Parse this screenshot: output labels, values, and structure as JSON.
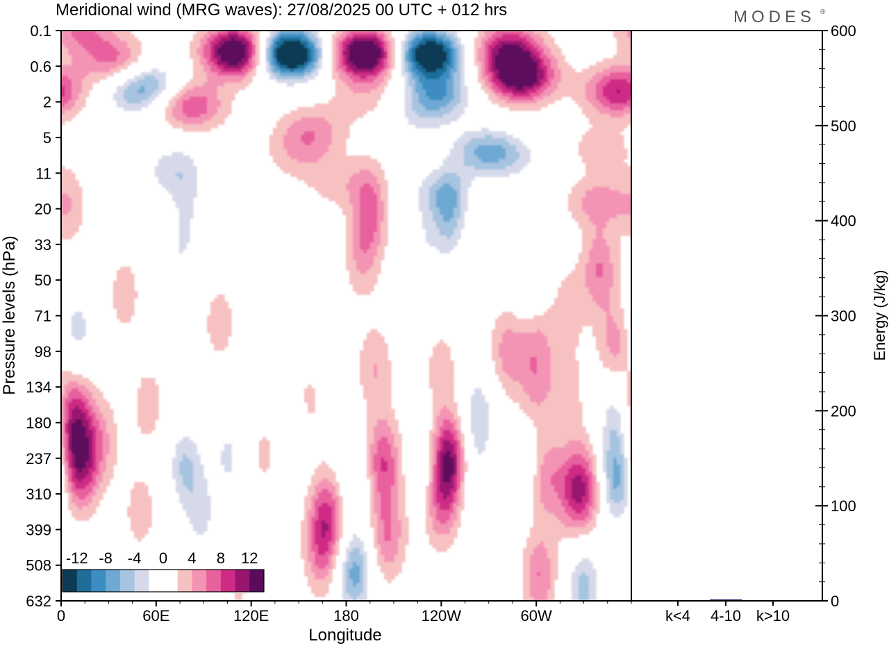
{
  "chart_data": {
    "type": "heatmap",
    "title": "Meridional wind (MRG waves):  27/08/2025  00 UTC  + 012 hrs",
    "brand": "MODES",
    "brand_mark": "®",
    "xlabel": "Longitude",
    "ylabel": "Pressure levels (hPa)",
    "x_ticks": [
      "0",
      "60E",
      "120E",
      "180",
      "120W",
      "60W"
    ],
    "y_ticks": [
      "0.1",
      "0.6",
      "2",
      "5",
      "11",
      "20",
      "33",
      "50",
      "71",
      "98",
      "134",
      "180",
      "237",
      "310",
      "399",
      "508",
      "632"
    ],
    "colorbar": {
      "labels": [
        "-12",
        "-8",
        "-4",
        "0",
        "4",
        "8",
        "12"
      ],
      "levels": [
        -14,
        -12,
        -10,
        -8,
        -6,
        -4,
        -2,
        2,
        4,
        6,
        8,
        10,
        12,
        14
      ],
      "colors": [
        "#0d3a55",
        "#1f6e9a",
        "#3c8dc2",
        "#6ea9d3",
        "#a6c3e0",
        "#d5d9ea",
        "#ffffff",
        "#ffffff",
        "#f7c1c1",
        "#f494b5",
        "#e9609e",
        "#cf2b85",
        "#98166f",
        "#5b0b5c"
      ]
    },
    "energy_panel": {
      "ylabel": "Energy (J/kg)",
      "ylim": [
        0,
        600
      ],
      "y_ticks": [
        "0",
        "100",
        "200",
        "300",
        "400",
        "500",
        "600"
      ],
      "categories": [
        "k<4",
        "4-10",
        "k>10"
      ],
      "values": [
        0.5,
        1.5,
        0.5
      ]
    },
    "features": [
      {
        "lon": 12,
        "lev": 0,
        "amp": 6
      },
      {
        "lon": 33,
        "lev": 0.8,
        "amp": 5
      },
      {
        "lon": 40,
        "lev": 1.2,
        "amp": 4
      },
      {
        "lon": 45,
        "lev": 1.65,
        "amp": -8
      },
      {
        "lon": 58,
        "lev": 1.4,
        "amp": -5
      },
      {
        "lon": 82,
        "lev": 2.1,
        "amp": 8
      },
      {
        "lon": 70,
        "lev": 3.6,
        "amp": -3
      },
      {
        "lon": 112,
        "lev": 0.6,
        "amp": 18
      },
      {
        "lon": 145,
        "lev": 0.65,
        "amp": -18
      },
      {
        "lon": 133,
        "lev": 0.6,
        "amp": -4
      },
      {
        "lon": 192,
        "lev": 0.65,
        "amp": 17
      },
      {
        "lon": 232,
        "lev": 0.65,
        "amp": -18
      },
      {
        "lon": 238,
        "lev": 1.8,
        "amp": -9
      },
      {
        "lon": 223,
        "lev": 2.5,
        "amp": -3
      },
      {
        "lon": 282,
        "lev": 0.5,
        "amp": 10
      },
      {
        "lon": 290,
        "lev": 1.3,
        "amp": 14
      },
      {
        "lon": 352,
        "lev": 1.7,
        "amp": 10
      },
      {
        "lon": 340,
        "lev": 3.3,
        "amp": 3
      },
      {
        "lon": 340,
        "lev": 4.8,
        "amp": 5
      },
      {
        "lon": 268,
        "lev": 3.4,
        "amp": -8
      },
      {
        "lon": 290,
        "lev": 3.6,
        "amp": -3
      },
      {
        "lon": 158,
        "lev": 2.8,
        "amp": 5
      },
      {
        "lon": 150,
        "lev": 3.5,
        "amp": 3
      },
      {
        "lon": 192,
        "lev": 1.9,
        "amp": 3
      },
      {
        "lon": 176,
        "lev": 4.3,
        "amp": 3
      },
      {
        "lon": 195,
        "lev": 5.0,
        "amp": 6
      },
      {
        "lon": 190,
        "lev": 6.3,
        "amp": 4
      },
      {
        "lon": 238,
        "lev": 4.5,
        "amp": -4
      },
      {
        "lon": 245,
        "lev": 5.2,
        "amp": -7
      },
      {
        "lon": 228,
        "lev": 5.9,
        "amp": -3
      },
      {
        "lon": 70,
        "lev": 4.2,
        "amp": -3
      },
      {
        "lon": 80,
        "lev": 5.0,
        "amp": -3
      },
      {
        "lon": 75,
        "lev": 6.3,
        "amp": -3
      },
      {
        "lon": 5,
        "lev": 5.0,
        "amp": 3
      },
      {
        "lon": 10,
        "lev": 8.4,
        "amp": -5
      },
      {
        "lon": 40,
        "lev": 7.4,
        "amp": 3
      },
      {
        "lon": 100,
        "lev": 8.2,
        "amp": 3
      },
      {
        "lon": 320,
        "lev": 7.8,
        "amp": 3
      },
      {
        "lon": 340,
        "lev": 6.7,
        "amp": 6
      },
      {
        "lon": 300,
        "lev": 8.6,
        "amp": 4
      },
      {
        "lon": 296,
        "lev": 7.3,
        "amp": -3
      },
      {
        "lon": 350,
        "lev": 8.9,
        "amp": 5
      },
      {
        "lon": 8,
        "lev": 10.8,
        "amp": 9
      },
      {
        "lon": 12,
        "lev": 12.2,
        "amp": 10
      },
      {
        "lon": 25,
        "lev": 11.5,
        "amp": 4
      },
      {
        "lon": 55,
        "lev": 10.5,
        "amp": 3
      },
      {
        "lon": 50,
        "lev": 13.5,
        "amp": 3
      },
      {
        "lon": 78,
        "lev": 12.2,
        "amp": -6
      },
      {
        "lon": 88,
        "lev": 13.6,
        "amp": -4
      },
      {
        "lon": 105,
        "lev": 11.8,
        "amp": -4
      },
      {
        "lon": 110,
        "lev": 13.8,
        "amp": -3
      },
      {
        "lon": 128,
        "lev": 11.5,
        "amp": 4
      },
      {
        "lon": 145,
        "lev": 11.2,
        "amp": -3
      },
      {
        "lon": 168,
        "lev": 13.5,
        "amp": 7
      },
      {
        "lon": 165,
        "lev": 14.6,
        "amp": 6
      },
      {
        "lon": 185,
        "lev": 12.3,
        "amp": -4
      },
      {
        "lon": 185,
        "lev": 15.2,
        "amp": -9
      },
      {
        "lon": 198,
        "lev": 9.5,
        "amp": 4
      },
      {
        "lon": 203,
        "lev": 12.1,
        "amp": 8
      },
      {
        "lon": 206,
        "lev": 14.2,
        "amp": 6
      },
      {
        "lon": 222,
        "lev": 12.5,
        "amp": 3
      },
      {
        "lon": 226,
        "lev": 12.3,
        "amp": -6
      },
      {
        "lon": 245,
        "lev": 12.0,
        "amp": 12
      },
      {
        "lon": 240,
        "lev": 13.3,
        "amp": 6
      },
      {
        "lon": 240,
        "lev": 9.5,
        "amp": 3
      },
      {
        "lon": 263,
        "lev": 10.8,
        "amp": -6
      },
      {
        "lon": 260,
        "lev": 12.6,
        "amp": -3
      },
      {
        "lon": 272,
        "lev": 15.0,
        "amp": -3
      },
      {
        "lon": 298,
        "lev": 12.3,
        "amp": -5
      },
      {
        "lon": 282,
        "lev": 9.0,
        "amp": 5
      },
      {
        "lon": 304,
        "lev": 12.5,
        "amp": 8
      },
      {
        "lon": 302,
        "lev": 15.3,
        "amp": 6
      },
      {
        "lon": 325,
        "lev": 12.9,
        "amp": 9
      },
      {
        "lon": 335,
        "lev": 12.8,
        "amp": 4
      },
      {
        "lon": 350,
        "lev": 12.6,
        "amp": -9
      },
      {
        "lon": 350,
        "lev": 10.8,
        "amp": -5
      },
      {
        "lon": 330,
        "lev": 15.6,
        "amp": -7
      },
      {
        "lon": 320,
        "lev": 10.2,
        "amp": 3
      },
      {
        "lon": 300,
        "lev": 10.0,
        "amp": 4
      },
      {
        "lon": 110,
        "lev": 15.5,
        "amp": 3
      },
      {
        "lon": 125,
        "lev": 10.5,
        "amp": -3
      },
      {
        "lon": 155,
        "lev": 10.5,
        "amp": 3
      },
      {
        "lon": 95,
        "lev": 15.8,
        "amp": -3
      }
    ]
  }
}
